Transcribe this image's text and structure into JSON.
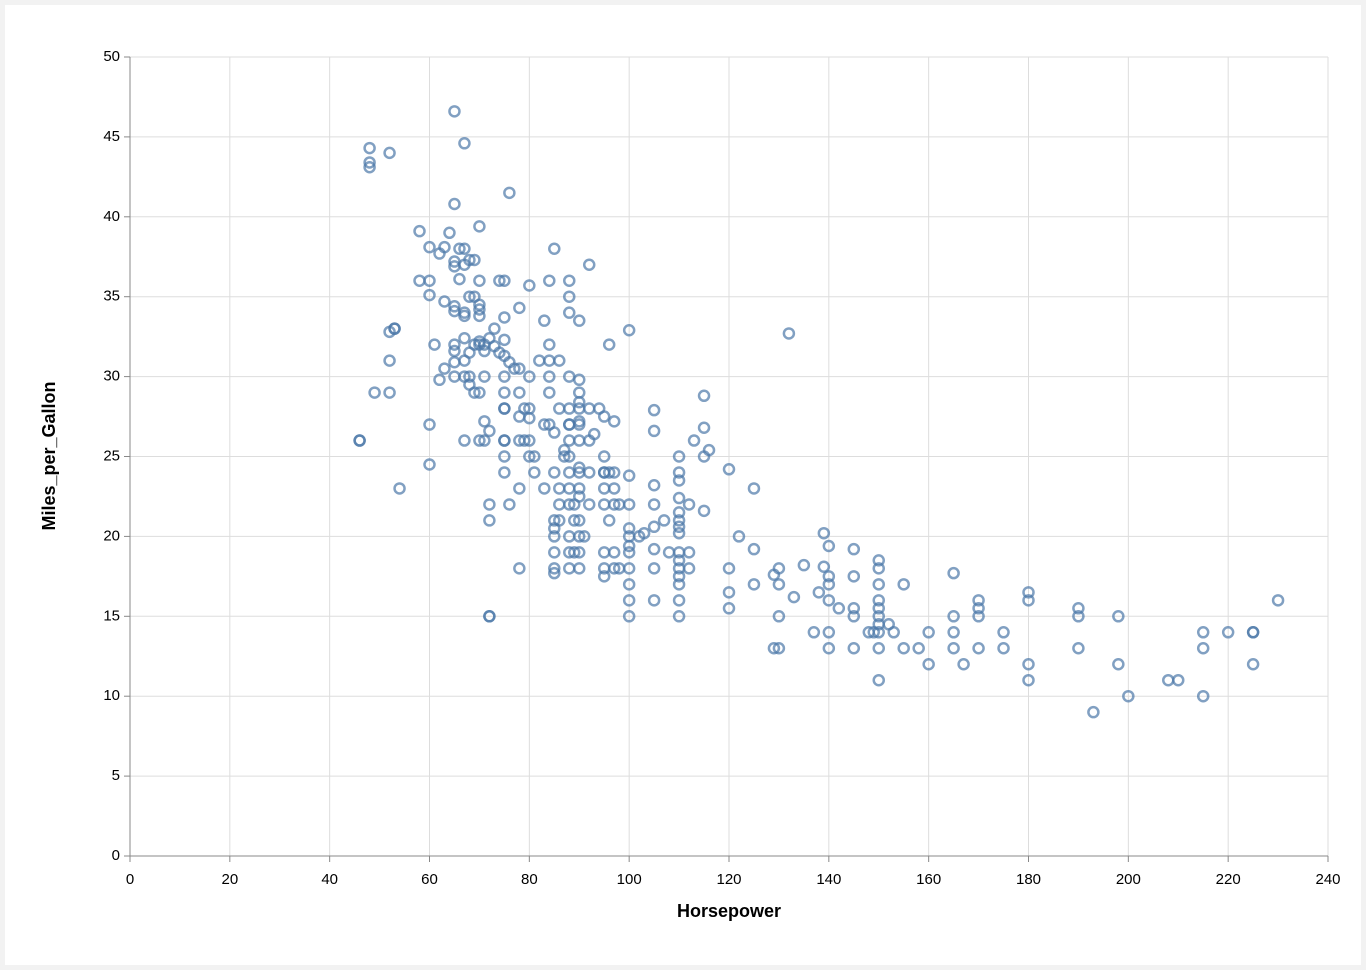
{
  "chart_data": {
    "type": "scatter",
    "x_label": "Horsepower",
    "y_label": "Miles_per_Gallon",
    "color": "#4c78a8",
    "grid": true,
    "xlim": [
      0,
      240
    ],
    "xticks": [
      0,
      20,
      40,
      60,
      80,
      100,
      120,
      140,
      160,
      180,
      200,
      220,
      240
    ],
    "ylim": [
      0,
      50
    ],
    "yticks": [
      0,
      5,
      10,
      15,
      20,
      25,
      30,
      35,
      40,
      45,
      50
    ],
    "x": [
      46,
      46,
      48,
      48,
      48,
      52,
      49,
      52,
      52,
      52,
      53,
      53,
      54,
      58,
      58,
      60,
      60,
      60,
      60,
      60,
      61,
      62,
      62,
      63,
      63,
      63,
      64,
      65,
      65,
      65,
      65,
      65,
      65,
      65,
      65,
      65,
      65,
      66,
      66,
      67,
      67,
      67,
      67,
      67,
      67,
      67,
      67,
      67,
      68,
      68,
      68,
      68,
      68,
      69,
      69,
      69,
      69,
      70,
      70,
      70,
      70,
      70,
      70,
      70,
      70,
      70,
      71,
      71,
      71,
      71,
      71,
      72,
      72,
      72,
      72,
      72,
      72,
      73,
      73,
      74,
      74,
      75,
      75,
      75,
      75,
      75,
      75,
      75,
      75,
      75,
      75,
      75,
      75,
      76,
      76,
      76,
      77,
      78,
      78,
      78,
      78,
      78,
      78,
      78,
      79,
      79,
      80,
      80,
      80,
      80,
      80,
      80,
      81,
      81,
      82,
      83,
      83,
      83,
      84,
      84,
      84,
      84,
      84,
      84,
      85,
      85,
      85,
      85,
      85,
      85,
      85,
      85,
      85,
      86,
      86,
      86,
      86,
      86,
      87,
      87,
      88,
      88,
      88,
      88,
      88,
      88,
      88,
      88,
      88,
      88,
      88,
      88,
      88,
      88,
      88,
      89,
      89,
      89,
      90,
      90,
      90,
      90,
      90,
      90,
      90,
      90,
      90,
      90,
      90,
      90,
      90,
      90,
      90,
      90,
      91,
      92,
      92,
      92,
      92,
      92,
      93,
      94,
      95,
      95,
      95,
      95,
      95,
      95,
      95,
      95,
      95,
      96,
      96,
      96,
      97,
      97,
      97,
      97,
      97,
      97,
      98,
      98,
      100,
      100,
      100,
      100,
      100,
      100,
      100,
      100,
      100,
      100,
      100,
      102,
      103,
      105,
      105,
      105,
      105,
      105,
      105,
      105,
      105,
      107,
      108,
      110,
      110,
      110,
      110,
      110,
      110,
      110,
      110,
      110,
      110,
      110,
      110,
      110,
      110,
      110,
      112,
      112,
      112,
      113,
      115,
      115,
      115,
      115,
      116,
      120,
      120,
      120,
      120,
      122,
      125,
      125,
      125,
      129,
      129,
      130,
      130,
      130,
      130,
      132,
      133,
      135,
      137,
      138,
      139,
      139,
      140,
      140,
      140,
      140,
      140,
      140,
      142,
      145,
      145,
      145,
      145,
      145,
      148,
      149,
      150,
      150,
      150,
      150,
      150,
      150,
      150,
      150,
      150,
      150,
      152,
      153,
      155,
      155,
      158,
      160,
      160,
      165,
      165,
      165,
      165,
      167,
      170,
      170,
      170,
      170,
      175,
      175,
      180,
      180,
      180,
      180,
      190,
      190,
      190,
      193,
      198,
      198,
      200,
      208,
      210,
      215,
      215,
      215,
      220,
      225,
      225,
      225,
      230
    ],
    "values": [
      26,
      26,
      44.3,
      43.4,
      43.1,
      44,
      29,
      29,
      31,
      32.8,
      33,
      33,
      23,
      39.1,
      36,
      36,
      38.1,
      35.1,
      27,
      24.5,
      32,
      29.8,
      37.7,
      38.1,
      30.5,
      34.7,
      39,
      46.6,
      40.8,
      37.2,
      36.9,
      34.4,
      34.1,
      32,
      31.6,
      30.9,
      30,
      36.1,
      38,
      38,
      44.6,
      37,
      34,
      33.8,
      32.4,
      31,
      30,
      26,
      37.3,
      35,
      31.5,
      30,
      29.5,
      37.3,
      35,
      29,
      32,
      39.4,
      36,
      34.5,
      34.2,
      33.8,
      32.2,
      32,
      29,
      26,
      31.6,
      32,
      30,
      27.2,
      26,
      32.4,
      22,
      21,
      15,
      15,
      26.6,
      33,
      31.9,
      36,
      31.5,
      36,
      33.7,
      32.3,
      31.3,
      30,
      28,
      28,
      29,
      26,
      26,
      25,
      24,
      41.5,
      30.9,
      22,
      30.5,
      34.3,
      30.5,
      29,
      27.5,
      26,
      23,
      18,
      28,
      26,
      35.7,
      30,
      28,
      27.4,
      26,
      25,
      25,
      24,
      31,
      33.5,
      27,
      23,
      36,
      32,
      31,
      30,
      29,
      27,
      38,
      26.5,
      24,
      21,
      20,
      19,
      18,
      17.7,
      20.5,
      31,
      28,
      23,
      22,
      21,
      25,
      25.4,
      36,
      35,
      34,
      30,
      28,
      27,
      27,
      26,
      25,
      24,
      23,
      22,
      20,
      19,
      18,
      21,
      19,
      22,
      33.5,
      29.8,
      29,
      28.4,
      28,
      27.2,
      27,
      26,
      24.3,
      24,
      23,
      22.5,
      21,
      20,
      19,
      18,
      20,
      37,
      28,
      26,
      24,
      22,
      26.4,
      28,
      27.5,
      25,
      24,
      24,
      23,
      22,
      19,
      18,
      17.5,
      32,
      24,
      21,
      27.2,
      24,
      23,
      22,
      19,
      18,
      22,
      18,
      32.9,
      23.8,
      22,
      20.5,
      20,
      19.4,
      19,
      18,
      17,
      16,
      15,
      20,
      20.2,
      27.9,
      26.6,
      23.2,
      22,
      20.6,
      19.2,
      18,
      16,
      21,
      19,
      25,
      24,
      23.5,
      22.4,
      21.5,
      21,
      20.6,
      20.2,
      19,
      18.5,
      18,
      17.5,
      17,
      16,
      15,
      22,
      19,
      18,
      26,
      28.8,
      26.8,
      25,
      21.6,
      25.4,
      24.2,
      18,
      16.5,
      15.5,
      20,
      23,
      17,
      19.2,
      17.6,
      13,
      18,
      17,
      15,
      13,
      32.7,
      16.2,
      18.2,
      14,
      16.5,
      20.2,
      18.1,
      19.4,
      17.5,
      17,
      16,
      14,
      13,
      15.5,
      19.2,
      17.5,
      15.5,
      15,
      13,
      14,
      14,
      18.5,
      18,
      17,
      16,
      15.5,
      15,
      14.5,
      14,
      13,
      11,
      14.5,
      14,
      17,
      13,
      13,
      14,
      12,
      17.7,
      15,
      14,
      13,
      12,
      16,
      15.5,
      15,
      13,
      14,
      13,
      16.5,
      16,
      12,
      11,
      15.5,
      15,
      13,
      9,
      15,
      12,
      10,
      11,
      11,
      14,
      13,
      10,
      14,
      14,
      14,
      12,
      16
    ]
  }
}
